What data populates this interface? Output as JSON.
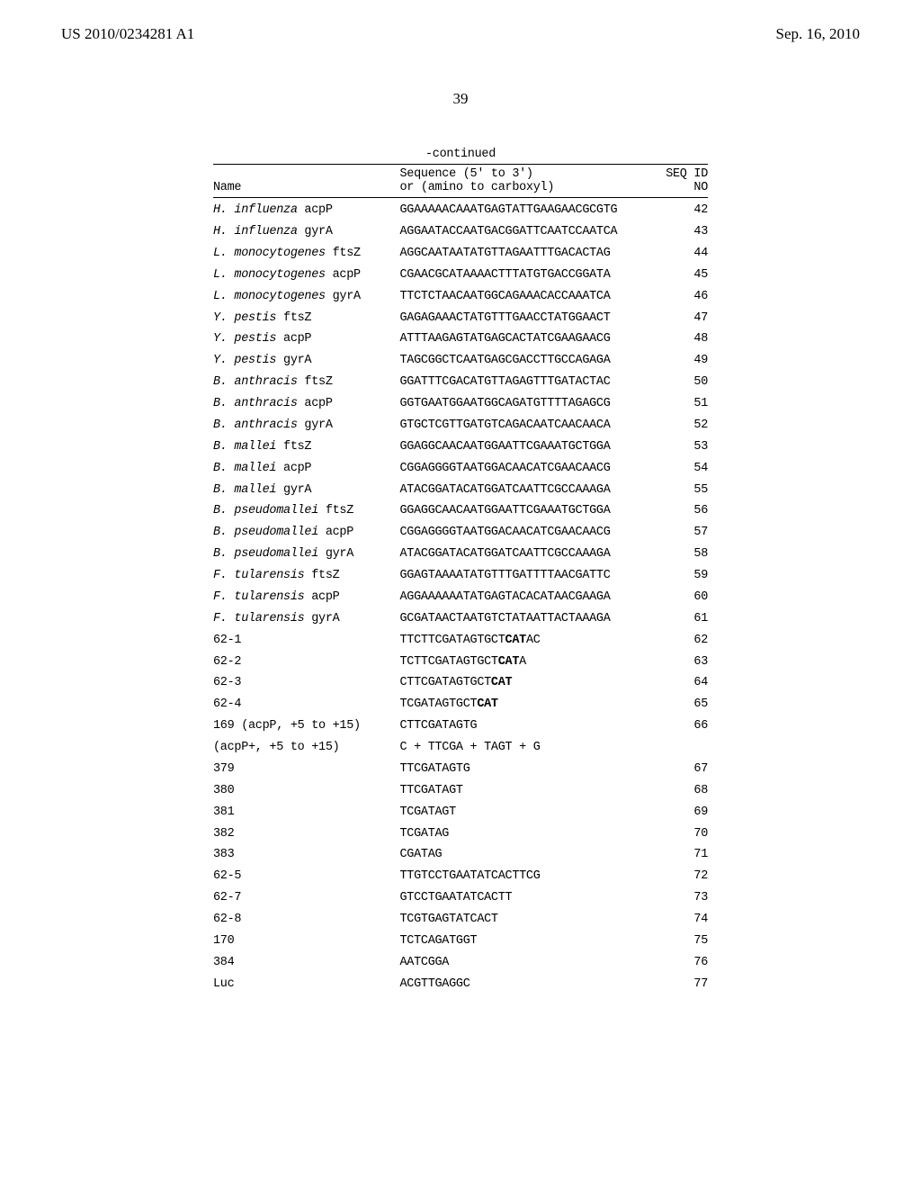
{
  "header": {
    "publication_number": "US 2010/0234281 A1",
    "publication_date": "Sep. 16, 2010"
  },
  "page_number": "39",
  "continued_label": "-continued",
  "table": {
    "columns": {
      "name": "Name",
      "seq_line1": "Sequence (5' to 3')",
      "seq_line2": "or (amino to carboxyl)",
      "id_line1": "SEQ ID",
      "id_line2": "NO"
    },
    "rows": [
      {
        "italic": "H. influenza",
        "plain": " acpP",
        "seq": "GGAAAAACAAATGAGTATTGAAGAACGCGTG",
        "id": "42"
      },
      {
        "italic": "H. influenza",
        "plain": " gyrA",
        "seq": "AGGAATACCAATGACGGATTCAATCCAATCA",
        "id": "43"
      },
      {
        "italic": "L. monocytogenes",
        "plain": " ftsZ",
        "seq": "AGGCAATAATATGTTAGAATTTGACACTAG",
        "id": "44"
      },
      {
        "italic": "L. monocytogenes",
        "plain": " acpP",
        "seq": "CGAACGCATAAAACTTTATGTGACCGGATA",
        "id": "45"
      },
      {
        "italic": "L. monocytogenes",
        "plain": " gyrA",
        "seq": "TTCTCTAACAATGGCAGAAACACCAAATCA",
        "id": "46"
      },
      {
        "italic": "Y. pestis",
        "plain": " ftsZ",
        "seq": "GAGAGAAACTATGTTTGAACCTATGGAACT",
        "id": "47"
      },
      {
        "italic": "Y. pestis",
        "plain": " acpP",
        "seq": "ATTTAAGAGTATGAGCACTATCGAAGAACG",
        "id": "48"
      },
      {
        "italic": "Y. pestis",
        "plain": " gyrA",
        "seq": "TAGCGGCTCAATGAGCGACCTTGCCAGAGA",
        "id": "49"
      },
      {
        "italic": "B. anthracis",
        "plain": " ftsZ",
        "seq": "GGATTTCGACATGTTAGAGTTTGATACTAC",
        "id": "50"
      },
      {
        "italic": "B. anthracis",
        "plain": " acpP",
        "seq": "GGTGAATGGAATGGCAGATGTTTTAGAGCG",
        "id": "51"
      },
      {
        "italic": "B. anthracis",
        "plain": " gyrA",
        "seq": "GTGCTCGTTGATGTCAGACAATCAACAACA",
        "id": "52"
      },
      {
        "italic": "B. mallei",
        "plain": " ftsZ",
        "seq": "GGAGGCAACAATGGAATTCGAAATGCTGGA",
        "id": "53"
      },
      {
        "italic": "B. mallei",
        "plain": " acpP",
        "seq": "CGGAGGGGTAATGGACAACATCGAACAACG",
        "id": "54"
      },
      {
        "italic": "B. mallei",
        "plain": " gyrA",
        "seq": "ATACGGATACATGGATCAATTCGCCAAAGA",
        "id": "55"
      },
      {
        "italic": "B. pseudomallei",
        "plain": " ftsZ",
        "seq": "GGAGGCAACAATGGAATTCGAAATGCTGGA",
        "id": "56"
      },
      {
        "italic": "B. pseudomallei",
        "plain": " acpP",
        "seq": "CGGAGGGGTAATGGACAACATCGAACAACG",
        "id": "57"
      },
      {
        "italic": "B. pseudomallei",
        "plain": " gyrA",
        "seq": "ATACGGATACATGGATCAATTCGCCAAAGA",
        "id": "58"
      },
      {
        "italic": "F. tularensis",
        "plain": " ftsZ",
        "seq": "GGAGTAAAATATGTTTGATTTTAACGATTC",
        "id": "59"
      },
      {
        "italic": "F. tularensis",
        "plain": " acpP",
        "seq": "AGGAAAAAATATGAGTACACATAACGAAGA",
        "id": "60"
      },
      {
        "italic": "F. tularensis",
        "plain": " gyrA",
        "seq": "GCGATAACTAATGTCTATAATTACTAAAGA",
        "id": "61"
      },
      {
        "italic": "",
        "plain": "62-1",
        "seq_html": "TTCTTCGATAGTGCT<b>CAT</b>AC",
        "id": "62"
      },
      {
        "italic": "",
        "plain": "62-2",
        "seq_html": "TCTTCGATAGTGCT<b>CAT</b>A",
        "id": "63"
      },
      {
        "italic": "",
        "plain": "62-3",
        "seq_html": "CTTCGATAGTGCT<b>CAT</b>",
        "id": "64"
      },
      {
        "italic": "",
        "plain": "62-4",
        "seq_html": "TCGATAGTGCT<b>CAT</b>",
        "id": "65"
      },
      {
        "italic": "",
        "plain": "169 (acpP, +5 to +15)",
        "seq": "CTTCGATAGTG",
        "id": "66"
      },
      {
        "italic": "",
        "plain": "(acpP+, +5 to +15)",
        "seq": "C + TTCGA + TAGT + G",
        "id": ""
      },
      {
        "italic": "",
        "plain": "379",
        "seq": "TTCGATAGTG",
        "id": "67"
      },
      {
        "italic": "",
        "plain": "380",
        "seq": "TTCGATAGT",
        "id": "68"
      },
      {
        "italic": "",
        "plain": "381",
        "seq": "TCGATAGT",
        "id": "69"
      },
      {
        "italic": "",
        "plain": "382",
        "seq": "TCGATAG",
        "id": "70"
      },
      {
        "italic": "",
        "plain": "383",
        "seq": "CGATAG",
        "id": "71"
      },
      {
        "italic": "",
        "plain": "62-5",
        "seq": "TTGTCCTGAATATCACTTCG",
        "id": "72"
      },
      {
        "italic": "",
        "plain": "62-7",
        "seq": "GTCCTGAATATCACTT",
        "id": "73"
      },
      {
        "italic": "",
        "plain": "62-8",
        "seq": "TCGTGAGTATCACT",
        "id": "74"
      },
      {
        "italic": "",
        "plain": "170",
        "seq": "TCTCAGATGGT",
        "id": "75"
      },
      {
        "italic": "",
        "plain": "384",
        "seq": "AATCGGA",
        "id": "76"
      },
      {
        "italic": "",
        "plain": "Luc",
        "seq": "ACGTTGAGGC",
        "id": "77"
      }
    ]
  }
}
